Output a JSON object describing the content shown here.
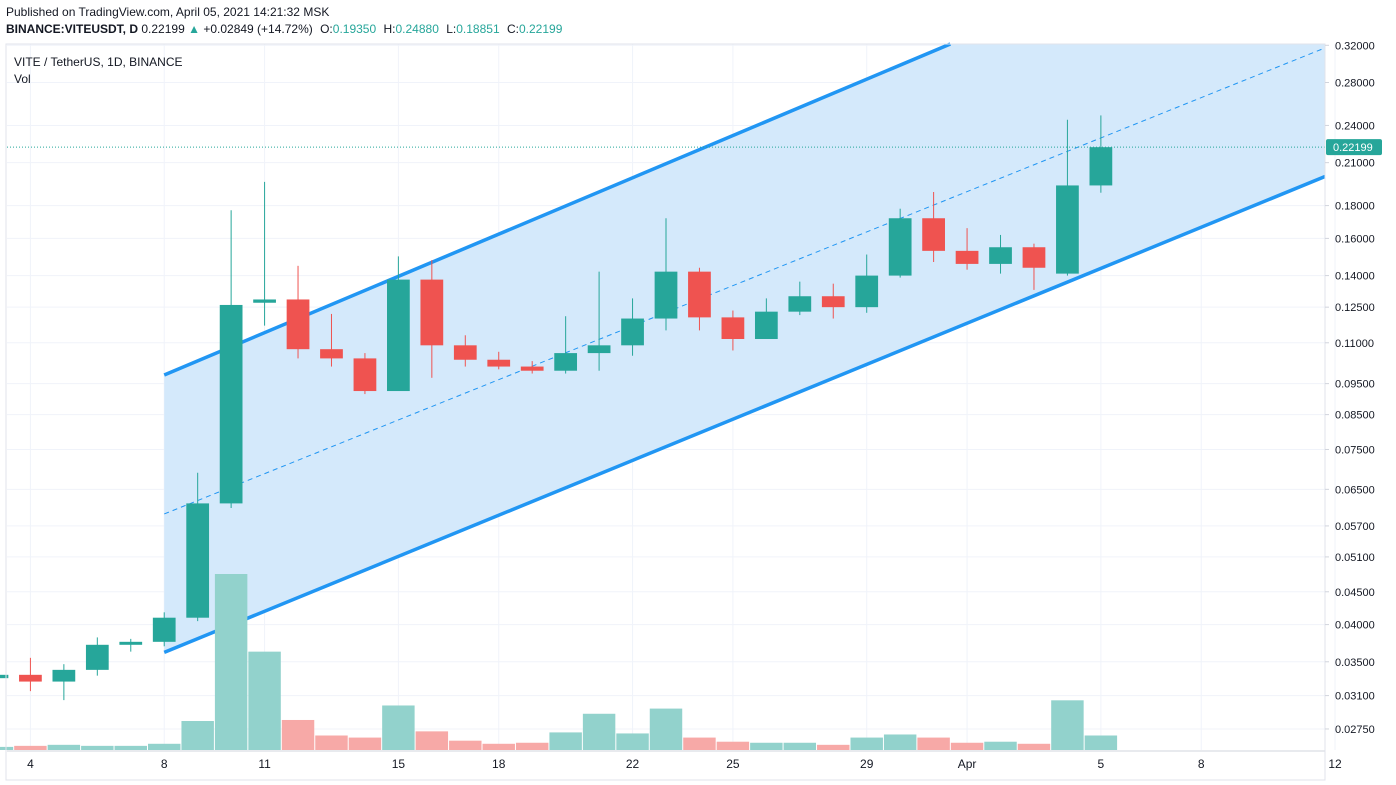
{
  "header": {
    "published": "Published on TradingView.com, April 05, 2021 14:21:32 MSK",
    "symbol": "BINANCE:VITEUSDT, D",
    "last": "0.22199",
    "arrow": "▲",
    "change": "+0.02849 (+14.72%)",
    "o_label": "O:",
    "o_value": "0.19350",
    "h_label": "H:",
    "h_value": "0.24880",
    "l_label": "L:",
    "l_value": "0.18851",
    "c_label": "C:",
    "c_value": "0.22199"
  },
  "legend": {
    "title": "VITE / TetherUS, 1D, BINANCE",
    "volume_label": "Vol"
  },
  "colors": {
    "up": "#26a69a",
    "down": "#ef5350",
    "vol_up": "#92d2cc",
    "vol_down": "#f7a9a7",
    "channel_line": "#2196f3",
    "channel_fill": "#d2e8fb",
    "price_label_bg": "#26a69a"
  },
  "chart_data": {
    "type": "candlestick",
    "title": "VITE / TetherUS, 1D, BINANCE",
    "y_scale": "log",
    "ylim": [
      0.0255,
      0.3215
    ],
    "y_ticks": [
      "0.32000",
      "0.28000",
      "0.24000",
      "0.21000",
      "0.18000",
      "0.16000",
      "0.14000",
      "0.12500",
      "0.11000",
      "0.09500",
      "0.08500",
      "0.07500",
      "0.06500",
      "0.05700",
      "0.05100",
      "0.04500",
      "0.04000",
      "0.03500",
      "0.03100",
      "0.02750"
    ],
    "y_tick_values": [
      0.32,
      0.28,
      0.24,
      0.21,
      0.18,
      0.16,
      0.14,
      0.125,
      0.11,
      0.095,
      0.085,
      0.075,
      0.065,
      0.057,
      0.051,
      0.045,
      0.04,
      0.035,
      0.031,
      0.0275
    ],
    "x_range_days": [
      -0.7,
      38.7
    ],
    "x_ticks": [
      {
        "label": "4",
        "day": 0
      },
      {
        "label": "8",
        "day": 4
      },
      {
        "label": "11",
        "day": 7
      },
      {
        "label": "15",
        "day": 11
      },
      {
        "label": "18",
        "day": 14
      },
      {
        "label": "22",
        "day": 18
      },
      {
        "label": "25",
        "day": 21
      },
      {
        "label": "29",
        "day": 25
      },
      {
        "label": "Apr",
        "day": 28
      },
      {
        "label": "5",
        "day": 32
      },
      {
        "label": "8",
        "day": 35
      },
      {
        "label": "12",
        "day": 39
      }
    ],
    "candles": [
      {
        "day": -1,
        "o": 0.033,
        "h": 0.0338,
        "l": 0.0325,
        "c": 0.0334,
        "v": 3
      },
      {
        "day": 0,
        "o": 0.0334,
        "h": 0.0355,
        "l": 0.0315,
        "c": 0.0326,
        "v": 4
      },
      {
        "day": 1,
        "o": 0.0326,
        "h": 0.0347,
        "l": 0.0305,
        "c": 0.034,
        "v": 5
      },
      {
        "day": 2,
        "o": 0.034,
        "h": 0.0382,
        "l": 0.0333,
        "c": 0.0372,
        "v": 4
      },
      {
        "day": 3,
        "o": 0.0372,
        "h": 0.038,
        "l": 0.0363,
        "c": 0.0376,
        "v": 4
      },
      {
        "day": 4,
        "o": 0.0376,
        "h": 0.0418,
        "l": 0.037,
        "c": 0.041,
        "v": 6
      },
      {
        "day": 5,
        "o": 0.041,
        "h": 0.069,
        "l": 0.0405,
        "c": 0.0618,
        "v": 28
      },
      {
        "day": 6,
        "o": 0.0618,
        "h": 0.177,
        "l": 0.0608,
        "c": 0.126,
        "v": 170
      },
      {
        "day": 7,
        "o": 0.127,
        "h": 0.196,
        "l": 0.117,
        "c": 0.1285,
        "v": 95
      },
      {
        "day": 8,
        "o": 0.1285,
        "h": 0.145,
        "l": 0.104,
        "c": 0.1075,
        "v": 29
      },
      {
        "day": 9,
        "o": 0.1075,
        "h": 0.122,
        "l": 0.101,
        "c": 0.104,
        "v": 14
      },
      {
        "day": 10,
        "o": 0.104,
        "h": 0.106,
        "l": 0.0915,
        "c": 0.0925,
        "v": 12
      },
      {
        "day": 11,
        "o": 0.0925,
        "h": 0.15,
        "l": 0.0925,
        "c": 0.138,
        "v": 43
      },
      {
        "day": 12,
        "o": 0.138,
        "h": 0.148,
        "l": 0.097,
        "c": 0.109,
        "v": 18
      },
      {
        "day": 13,
        "o": 0.109,
        "h": 0.113,
        "l": 0.101,
        "c": 0.1035,
        "v": 9
      },
      {
        "day": 14,
        "o": 0.1035,
        "h": 0.1065,
        "l": 0.1,
        "c": 0.101,
        "v": 6
      },
      {
        "day": 15,
        "o": 0.101,
        "h": 0.103,
        "l": 0.0985,
        "c": 0.0995,
        "v": 7
      },
      {
        "day": 16,
        "o": 0.0995,
        "h": 0.121,
        "l": 0.0985,
        "c": 0.106,
        "v": 17
      },
      {
        "day": 17,
        "o": 0.106,
        "h": 0.142,
        "l": 0.0995,
        "c": 0.109,
        "v": 35
      },
      {
        "day": 18,
        "o": 0.109,
        "h": 0.129,
        "l": 0.105,
        "c": 0.12,
        "v": 16
      },
      {
        "day": 19,
        "o": 0.12,
        "h": 0.172,
        "l": 0.115,
        "c": 0.142,
        "v": 40
      },
      {
        "day": 20,
        "o": 0.142,
        "h": 0.144,
        "l": 0.115,
        "c": 0.1205,
        "v": 12
      },
      {
        "day": 21,
        "o": 0.1205,
        "h": 0.1235,
        "l": 0.107,
        "c": 0.1115,
        "v": 8
      },
      {
        "day": 22,
        "o": 0.1115,
        "h": 0.129,
        "l": 0.1115,
        "c": 0.123,
        "v": 7
      },
      {
        "day": 23,
        "o": 0.123,
        "h": 0.137,
        "l": 0.1215,
        "c": 0.13,
        "v": 7
      },
      {
        "day": 24,
        "o": 0.13,
        "h": 0.136,
        "l": 0.12,
        "c": 0.125,
        "v": 5
      },
      {
        "day": 25,
        "o": 0.125,
        "h": 0.151,
        "l": 0.1225,
        "c": 0.14,
        "v": 12
      },
      {
        "day": 26,
        "o": 0.14,
        "h": 0.178,
        "l": 0.139,
        "c": 0.172,
        "v": 15
      },
      {
        "day": 27,
        "o": 0.172,
        "h": 0.189,
        "l": 0.147,
        "c": 0.153,
        "v": 12
      },
      {
        "day": 28,
        "o": 0.153,
        "h": 0.166,
        "l": 0.143,
        "c": 0.146,
        "v": 7
      },
      {
        "day": 29,
        "o": 0.146,
        "h": 0.162,
        "l": 0.141,
        "c": 0.155,
        "v": 8
      },
      {
        "day": 30,
        "o": 0.155,
        "h": 0.157,
        "l": 0.133,
        "c": 0.144,
        "v": 6
      },
      {
        "day": 31,
        "o": 0.141,
        "h": 0.245,
        "l": 0.14,
        "c": 0.1935,
        "v": 48
      },
      {
        "day": 32,
        "o": 0.1935,
        "h": 0.2488,
        "l": 0.18851,
        "c": 0.22199,
        "v": 14
      }
    ],
    "channel": {
      "upper": [
        {
          "day": 4,
          "price": 0.098
        },
        {
          "day": 27.5,
          "price": 0.3215
        }
      ],
      "middle": [
        {
          "day": 4,
          "price": 0.0595
        },
        {
          "day": 38.7,
          "price": 0.317
        }
      ],
      "lower": [
        {
          "day": 4,
          "price": 0.0362
        },
        {
          "day": 38.7,
          "price": 0.1998
        }
      ]
    },
    "last_price": 0.22199,
    "last_price_label": "0.22199"
  }
}
